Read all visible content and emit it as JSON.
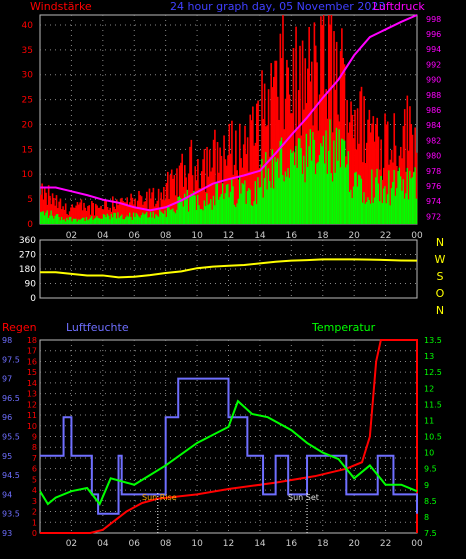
{
  "header": {
    "left_label": "Windstärke",
    "title": "24 hour graph day, 05 November 2023",
    "right_label": "Luftdruck"
  },
  "wind_pressure": {
    "windstaerke_ticks": [
      0,
      5,
      10,
      15,
      20,
      25,
      30,
      35,
      40
    ],
    "luftdruck_ticks": [
      972,
      974,
      976,
      978,
      980,
      982,
      984,
      986,
      988,
      990,
      992,
      994,
      996,
      998
    ],
    "windstaerke_range": [
      0,
      42
    ],
    "luftdruck_range": [
      971,
      998.5
    ],
    "hour_labels": [
      "02",
      "04",
      "06",
      "08",
      "10",
      "12",
      "14",
      "16",
      "18",
      "20",
      "22",
      "00"
    ]
  },
  "direction": {
    "degree_ticks": [
      0,
      90,
      180,
      270,
      360
    ],
    "compass": [
      "N",
      "W",
      "S",
      "O",
      "N"
    ]
  },
  "climate": {
    "regen_label": "Regen",
    "luftfeuchte_label": "Luftfeuchte",
    "temperatur_label": "Temperatur",
    "regen_ticks": [
      0,
      1,
      2,
      3,
      4,
      5,
      6,
      7,
      8,
      9,
      10,
      11,
      12,
      13,
      14,
      15,
      16,
      17,
      18
    ],
    "luftfeuchte_ticks": [
      "93",
      "93.5",
      "94",
      "94.5",
      "95",
      "95.5",
      "96",
      "96.5",
      "97",
      "97.5",
      "98"
    ],
    "temperatur_ticks": [
      "7.5",
      "8",
      "8.5",
      "9",
      "9.5",
      "10",
      "10.5",
      "11",
      "11.5",
      "12",
      "12.5",
      "13",
      "13.5"
    ],
    "sunrise_label": "Sun Rise",
    "sunset_label": "Sun Set"
  },
  "colors": {
    "wind_gust": "#ff0000",
    "wind_avg": "#00ff00",
    "pressure": "#ff00ff",
    "direction": "#ffff00",
    "rain": "#ff0000",
    "humidity": "#6f6fff",
    "temperature": "#00ff00",
    "header_red": "#ff0000",
    "header_blue": "#4040ff",
    "header_magenta": "#ff00ff",
    "compass": "#ffff00",
    "temp_label": "#00ff00"
  },
  "chart_data": [
    {
      "type": "line",
      "title": "24 hour graph day, 05 November 2023",
      "ylabel": "Windstärke",
      "y2label": "Luftdruck",
      "x": [
        1,
        2,
        3,
        4,
        5,
        6,
        7,
        8,
        9,
        10,
        11,
        12,
        13,
        14,
        15,
        16,
        17,
        18,
        19,
        20,
        21,
        22,
        23,
        24
      ],
      "series": [
        {
          "name": "Windstärke",
          "values": [
            4,
            2,
            2,
            2,
            3,
            3,
            3,
            4,
            6,
            9,
            10,
            11,
            12,
            14,
            20,
            24,
            22,
            25,
            27,
            22,
            16,
            15,
            14,
            15
          ]
        },
        {
          "name": "Luftdruck",
          "values": [
            975.8,
            975.3,
            974.8,
            974.2,
            973.8,
            973.2,
            972.8,
            973.2,
            974.1,
            975.2,
            976.3,
            976.9,
            977.4,
            978.0,
            980.3,
            982.7,
            985.0,
            987.6,
            990.0,
            993.2,
            995.6,
            996.6,
            997.6,
            998.5
          ]
        }
      ],
      "ylim": [
        0,
        42
      ],
      "y2lim": [
        971,
        998.5
      ]
    },
    {
      "type": "line",
      "series": [
        {
          "name": "Windrichtung",
          "values": [
            160,
            150,
            140,
            140,
            128,
            132,
            142,
            155,
            165,
            185,
            195,
            200,
            205,
            215,
            225,
            232,
            235,
            240,
            240,
            240,
            238,
            236,
            233,
            232
          ]
        }
      ],
      "x": [
        1,
        2,
        3,
        4,
        5,
        6,
        7,
        8,
        9,
        10,
        11,
        12,
        13,
        14,
        15,
        16,
        17,
        18,
        19,
        20,
        21,
        22,
        23,
        24
      ],
      "ylim": [
        0,
        360
      ]
    },
    {
      "type": "line",
      "series": [
        {
          "name": "Regen",
          "x": [
            0,
            3.2,
            4.0,
            5.5,
            6.5,
            7.5,
            10,
            12,
            15,
            17.5,
            19.5,
            20.5,
            21.0,
            21.4,
            21.7,
            24
          ],
          "values": [
            0,
            0,
            0.3,
            2.0,
            2.8,
            3.2,
            3.6,
            4.1,
            4.7,
            5.3,
            6.0,
            6.6,
            9,
            16,
            18,
            18
          ]
        },
        {
          "name": "Luftfeuchte",
          "x": [
            0,
            1.5,
            2.0,
            3.3,
            3.7,
            5.0,
            5.2,
            8.0,
            8.8,
            12.0,
            12.7,
            13.2,
            14.2,
            15.0,
            15.8,
            17.0,
            18.5,
            19.5,
            21.5,
            22.5,
            23.6,
            24
          ],
          "values": [
            95,
            96,
            95,
            94,
            93.5,
            95,
            94,
            96,
            97,
            96,
            96,
            95,
            94,
            95,
            94,
            95,
            95,
            94,
            95,
            94,
            94,
            93.5
          ]
        },
        {
          "name": "Temperatur",
          "x": [
            0,
            0.5,
            1,
            2,
            3,
            3.8,
            4.5,
            6,
            8,
            10,
            12,
            12.6,
            13.5,
            14.5,
            16,
            17,
            18,
            19,
            20,
            21,
            22,
            23,
            24
          ],
          "values": [
            8.8,
            8.4,
            8.6,
            8.8,
            8.9,
            8.4,
            9.2,
            9.0,
            9.6,
            10.3,
            10.8,
            11.6,
            11.2,
            11.1,
            10.7,
            10.3,
            10.0,
            9.8,
            9.2,
            9.6,
            9.0,
            9.0,
            8.8
          ]
        }
      ],
      "regen_range": [
        0,
        18
      ],
      "luftfeuchte_range": [
        93,
        98
      ],
      "temperatur_range": [
        7.5,
        13.5
      ]
    }
  ]
}
